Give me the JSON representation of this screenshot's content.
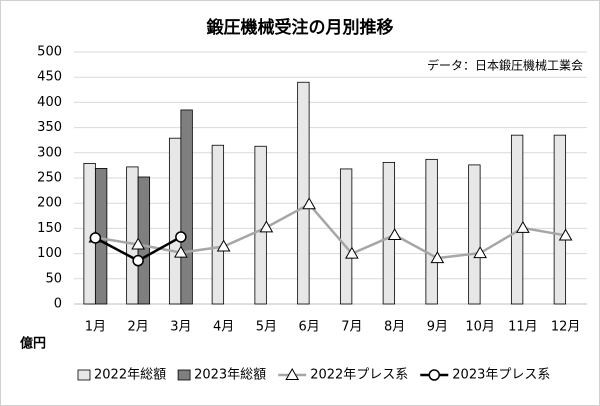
{
  "chart_data": {
    "type": "combo",
    "title": "鍛圧機械受注の月別推移",
    "annotation": "データ：日本鍛圧機械工業会",
    "y_label": "億円",
    "categories": [
      "1月",
      "2月",
      "3月",
      "4月",
      "5月",
      "6月",
      "7月",
      "8月",
      "9月",
      "10月",
      "11月",
      "12月"
    ],
    "series": [
      {
        "name": "2022年総額",
        "type": "bar",
        "color": "#e7e7e7",
        "values": [
          279,
          272,
          329,
          315,
          313,
          440,
          268,
          281,
          287,
          276,
          335,
          335
        ]
      },
      {
        "name": "2023年総額",
        "type": "bar",
        "color": "#7f7f7f",
        "values": [
          269,
          252,
          385,
          null,
          null,
          null,
          null,
          null,
          null,
          null,
          null,
          null
        ]
      },
      {
        "name": "2022年プレス系",
        "type": "line",
        "marker": "triangle",
        "color": "#a6a6a6",
        "values": [
          132,
          118,
          102,
          114,
          152,
          198,
          100,
          137,
          91,
          101,
          151,
          136
        ]
      },
      {
        "name": "2023年プレス系",
        "type": "line",
        "marker": "circle",
        "color": "#000000",
        "values": [
          131,
          86,
          133,
          null,
          null,
          null,
          null,
          null,
          null,
          null,
          null,
          null
        ]
      }
    ],
    "ylim": [
      0,
      500
    ],
    "yticks": [
      0,
      50,
      100,
      150,
      200,
      250,
      300,
      350,
      400,
      450,
      500
    ],
    "grid": true
  }
}
